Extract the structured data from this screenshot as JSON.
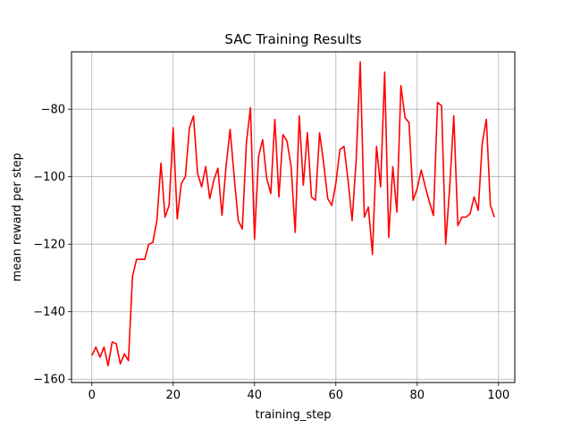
{
  "chart_data": {
    "type": "line",
    "title": "SAC Training Results",
    "xlabel": "training_step",
    "ylabel": "mean reward per step",
    "xlim": [
      -5,
      104
    ],
    "ylim": [
      -161,
      -63
    ],
    "xticks": [
      0,
      20,
      40,
      60,
      80,
      100
    ],
    "yticks": [
      -160,
      -140,
      -120,
      -100,
      -80
    ],
    "grid": true,
    "series": [
      {
        "color": "#ff0000",
        "x": [
          0,
          1,
          2,
          3,
          4,
          5,
          6,
          7,
          8,
          9,
          10,
          11,
          12,
          13,
          14,
          15,
          16,
          17,
          18,
          19,
          20,
          21,
          22,
          23,
          24,
          25,
          26,
          27,
          28,
          29,
          30,
          31,
          32,
          33,
          34,
          35,
          36,
          37,
          38,
          39,
          40,
          41,
          42,
          43,
          44,
          45,
          46,
          47,
          48,
          49,
          50,
          51,
          52,
          53,
          54,
          55,
          56,
          57,
          58,
          59,
          60,
          61,
          62,
          63,
          64,
          65,
          66,
          67,
          68,
          69,
          70,
          71,
          72,
          73,
          74,
          75,
          76,
          77,
          78,
          79,
          80,
          81,
          82,
          83,
          84,
          85,
          86,
          87,
          88,
          89,
          90,
          91,
          92,
          93,
          94,
          95,
          96,
          97,
          98,
          99
        ],
        "values": [
          -153,
          -150.5,
          -153.5,
          -150.5,
          -156,
          -149,
          -149.5,
          -155.5,
          -152.5,
          -154.5,
          -129.5,
          -124.5,
          -124.5,
          -124.5,
          -120,
          -119.5,
          -113,
          -96,
          -112,
          -108.5,
          -85.5,
          -112.5,
          -102,
          -100,
          -85.5,
          -82,
          -99,
          -103,
          -97,
          -106.5,
          -101,
          -97.5,
          -111.5,
          -97,
          -86,
          -100,
          -113,
          -115.5,
          -90,
          -79.5,
          -118.5,
          -94,
          -89,
          -100.5,
          -105,
          -83,
          -106,
          -87.5,
          -89.5,
          -97,
          -116.5,
          -82,
          -102.5,
          -87,
          -106,
          -107,
          -87,
          -96,
          -106.5,
          -108.5,
          -102,
          -92,
          -91,
          -101,
          -113,
          -95,
          -66,
          -112,
          -109,
          -123,
          -91,
          -103,
          -69,
          -118,
          -97,
          -110.5,
          -73,
          -82.5,
          -84,
          -107,
          -103.5,
          -98,
          -103,
          -107.5,
          -111.5,
          -78,
          -79,
          -120,
          -103,
          -82,
          -114.5,
          -112,
          -112,
          -111,
          -106,
          -110,
          -90,
          -83,
          -108.5,
          -112
        ]
      }
    ]
  }
}
